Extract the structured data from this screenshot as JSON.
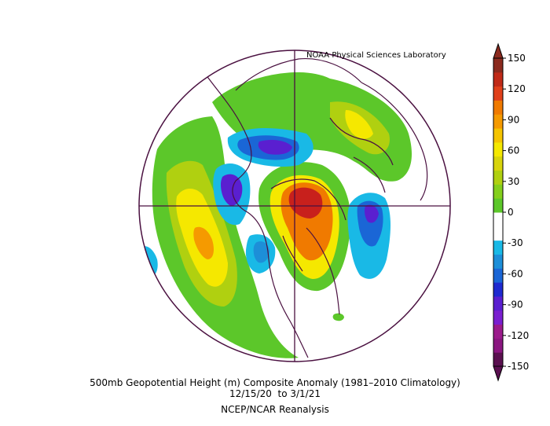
{
  "figure": {
    "credit": "NOAA Physical Sciences Laboratory",
    "caption_line1": "500mb Geopotential Height (m) Composite Anomaly (1981–2010 Climatology)",
    "caption_line2": "12/15/20  to 3/1/21",
    "caption_line3": "NCEP/NCAR Reanalysis"
  },
  "colorbar": {
    "levels": [
      {
        "label": "150",
        "color": "#8b2a1e"
      },
      {
        "label": "120",
        "color": "#e0401a"
      },
      {
        "label": "90",
        "color": "#f5c400"
      },
      {
        "label": "60",
        "color": "#b0d010"
      },
      {
        "label": "30",
        "color": "#5cc72a"
      },
      {
        "label": "0",
        "color": "#ffffff"
      },
      {
        "label": "-30",
        "color": "#1d8fd8"
      },
      {
        "label": "-60",
        "color": "#1f2ad0"
      },
      {
        "label": "-90",
        "color": "#7a1fd0"
      },
      {
        "label": "-120",
        "color": "#9b1b8c"
      },
      {
        "label": "-150",
        "color": "#5a1050"
      }
    ],
    "segments": [
      "#5a1050",
      "#8a1680",
      "#9b1b8c",
      "#7a1fd0",
      "#5a1fd0",
      "#1f2ad0",
      "#1a66d6",
      "#1d8fd8",
      "#19b9e6",
      "#ffffff",
      "#ffffff",
      "#5cc72a",
      "#84cf1c",
      "#b0d010",
      "#d8d40c",
      "#f5e800",
      "#f5c400",
      "#f59a00",
      "#f07a00",
      "#e0401a",
      "#c02a18",
      "#8b2a1e"
    ]
  },
  "colors": {
    "boundary": "#4a1040",
    "pos_low": "#5cc72a",
    "pos_mid": "#b0d010",
    "pos_high": "#f5e800",
    "pos_max": "#f07a00",
    "extreme": "#c8201c",
    "neg_low": "#19b9e6",
    "neg_mid": "#1a66d6",
    "neg_high": "#5a1fd0"
  }
}
